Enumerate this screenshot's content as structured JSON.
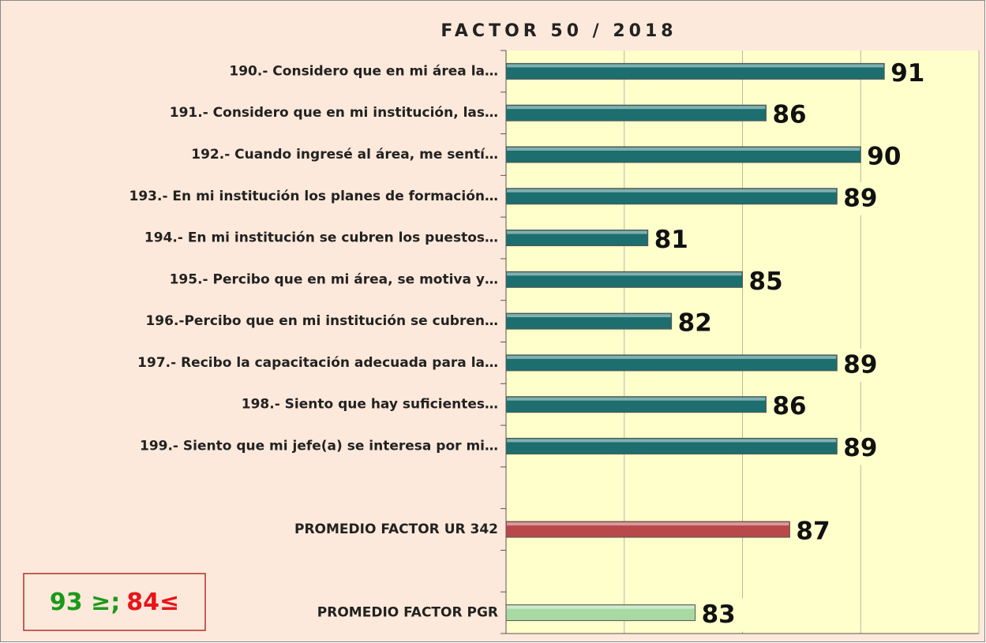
{
  "chart_data": {
    "type": "bar",
    "orientation": "horizontal",
    "title": "FACTOR 50 / 2018",
    "categories": [
      "190.- Considero que en mi área la…",
      "191.- Considero que en mi institución, las…",
      "192.- Cuando ingresé al área, me sentí…",
      "193.- En mi institución los planes de formación…",
      "194.- En mi institución se cubren los puestos…",
      "195.- Percibo que en mi área, se motiva y…",
      "196.-Percibo que en mi institución se cubren…",
      "197.- Recibo la capacitación adecuada para la…",
      "198.- Siento que hay suficientes…",
      "199.- Siento que mi jefe(a) se interesa por mi…",
      null,
      "PROMEDIO FACTOR UR 342",
      null,
      "PROMEDIO FACTOR PGR"
    ],
    "values": [
      91,
      86,
      90,
      89,
      81,
      85,
      82,
      89,
      86,
      89,
      null,
      87,
      null,
      83
    ],
    "colors": [
      "#1d6e6e",
      "#1d6e6e",
      "#1d6e6e",
      "#1d6e6e",
      "#1d6e6e",
      "#1d6e6e",
      "#1d6e6e",
      "#1d6e6e",
      "#1d6e6e",
      "#1d6e6e",
      null,
      "#b9484a",
      null,
      "#a9d9a3"
    ],
    "xlim": [
      75,
      95
    ],
    "xticks": [
      75,
      80,
      85,
      90,
      95
    ],
    "grid": true,
    "annotations": [
      {
        "text": "93 ≥;",
        "color": "#1a9a1a"
      },
      {
        "text": "84≤",
        "color": "#e8141a"
      }
    ]
  }
}
